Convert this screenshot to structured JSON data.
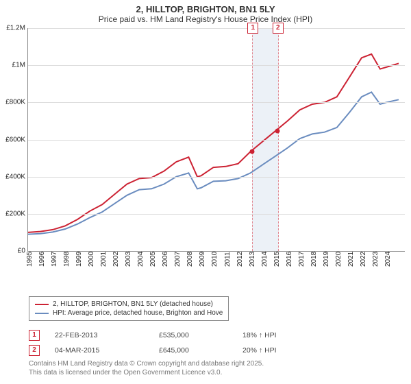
{
  "title_line1": "2, HILLTOP, BRIGHTON, BN1 5LY",
  "title_line2": "Price paid vs. HM Land Registry's House Price Index (HPI)",
  "chart": {
    "type": "line",
    "xlim": [
      1995,
      2025.5
    ],
    "ylim": [
      0,
      1200000
    ],
    "ytick_step": 200000,
    "yticks": [
      "£0",
      "£200K",
      "£400K",
      "£600K",
      "£800K",
      "£1M",
      "£1.2M"
    ],
    "xticks": [
      1995,
      1996,
      1997,
      1998,
      1999,
      2000,
      2001,
      2002,
      2003,
      2004,
      2005,
      2006,
      2007,
      2008,
      2009,
      2010,
      2011,
      2012,
      2013,
      2014,
      2015,
      2016,
      2017,
      2018,
      2019,
      2020,
      2021,
      2022,
      2023,
      2024
    ],
    "background_color": "#ffffff",
    "grid_color": "#dddddd",
    "series": [
      {
        "name": "2, HILLTOP, BRIGHTON, BN1 5LY (detached house)",
        "color": "#cc2233",
        "width": 2,
        "data": [
          [
            1995,
            100000
          ],
          [
            1996,
            105000
          ],
          [
            1997,
            115000
          ],
          [
            1998,
            135000
          ],
          [
            1999,
            170000
          ],
          [
            2000,
            215000
          ],
          [
            2001,
            250000
          ],
          [
            2002,
            305000
          ],
          [
            2003,
            360000
          ],
          [
            2004,
            390000
          ],
          [
            2005,
            395000
          ],
          [
            2006,
            430000
          ],
          [
            2007,
            480000
          ],
          [
            2008,
            505000
          ],
          [
            2008.7,
            400000
          ],
          [
            2009,
            405000
          ],
          [
            2010,
            450000
          ],
          [
            2011,
            455000
          ],
          [
            2012,
            470000
          ],
          [
            2013,
            535000
          ],
          [
            2014,
            590000
          ],
          [
            2015,
            645000
          ],
          [
            2016,
            700000
          ],
          [
            2017,
            760000
          ],
          [
            2018,
            790000
          ],
          [
            2019,
            800000
          ],
          [
            2020,
            830000
          ],
          [
            2021,
            935000
          ],
          [
            2022,
            1040000
          ],
          [
            2022.8,
            1060000
          ],
          [
            2023.5,
            980000
          ],
          [
            2024,
            990000
          ],
          [
            2025,
            1010000
          ]
        ]
      },
      {
        "name": "HPI: Average price, detached house, Brighton and Hove",
        "color": "#6a8cbf",
        "width": 2,
        "data": [
          [
            1995,
            90000
          ],
          [
            1996,
            93000
          ],
          [
            1997,
            102000
          ],
          [
            1998,
            118000
          ],
          [
            1999,
            145000
          ],
          [
            2000,
            180000
          ],
          [
            2001,
            210000
          ],
          [
            2002,
            255000
          ],
          [
            2003,
            300000
          ],
          [
            2004,
            330000
          ],
          [
            2005,
            335000
          ],
          [
            2006,
            360000
          ],
          [
            2007,
            400000
          ],
          [
            2008,
            420000
          ],
          [
            2008.7,
            335000
          ],
          [
            2009,
            340000
          ],
          [
            2010,
            375000
          ],
          [
            2011,
            378000
          ],
          [
            2012,
            390000
          ],
          [
            2013,
            420000
          ],
          [
            2014,
            465000
          ],
          [
            2015,
            510000
          ],
          [
            2016,
            555000
          ],
          [
            2017,
            605000
          ],
          [
            2018,
            630000
          ],
          [
            2019,
            640000
          ],
          [
            2020,
            665000
          ],
          [
            2021,
            745000
          ],
          [
            2022,
            830000
          ],
          [
            2022.8,
            855000
          ],
          [
            2023.5,
            790000
          ],
          [
            2024,
            800000
          ],
          [
            2025,
            815000
          ]
        ]
      }
    ],
    "highlight": {
      "x_from": 2013.15,
      "x_to": 2015.17,
      "fill": "#dde6f2",
      "border": "#cc2233"
    },
    "markers": [
      {
        "num": "1",
        "x": 2013.15,
        "y": 535000
      },
      {
        "num": "2",
        "x": 2015.17,
        "y": 645000
      }
    ]
  },
  "legend": {
    "border": "#888888"
  },
  "sales": [
    {
      "num": "1",
      "date": "22-FEB-2013",
      "price": "£535,000",
      "note": "18% ↑ HPI"
    },
    {
      "num": "2",
      "date": "04-MAR-2015",
      "price": "£645,000",
      "note": "20% ↑ HPI"
    }
  ],
  "footer1": "Contains HM Land Registry data © Crown copyright and database right 2025.",
  "footer2": "This data is licensed under the Open Government Licence v3.0."
}
